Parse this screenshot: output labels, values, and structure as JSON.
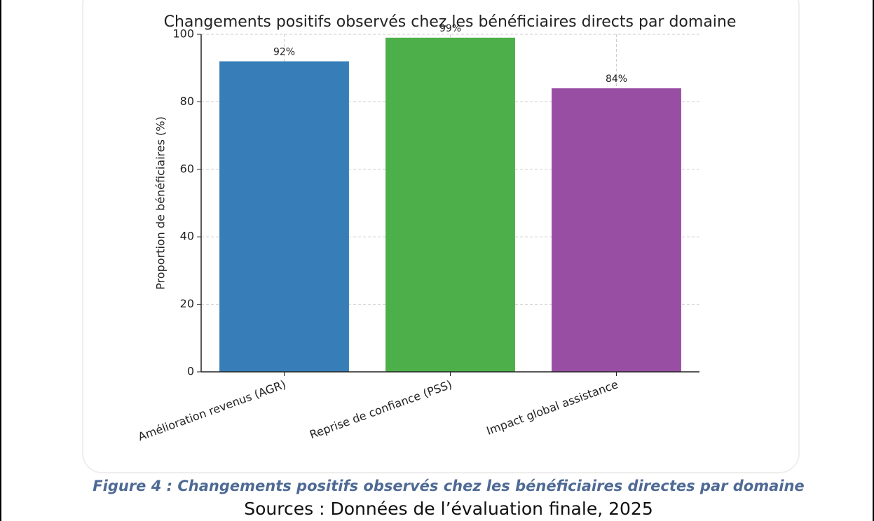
{
  "chart_data": {
    "type": "bar",
    "title": "Changements positifs observés chez les bénéficiaires directs par domaine",
    "ylabel": "Proportion de bénéficiaires (%)",
    "categories": [
      "Amélioration revenus (AGR)",
      "Reprise de confiance (PSS)",
      "Impact global assistance"
    ],
    "values": [
      92,
      99,
      84
    ],
    "value_labels": [
      "92%",
      "99%",
      "84%"
    ],
    "colors": [
      "#377eb8",
      "#4daf4a",
      "#984ea3"
    ],
    "ylim": [
      0,
      100
    ],
    "yticks": [
      0,
      20,
      40,
      60,
      80,
      100
    ],
    "grid": true
  },
  "caption": {
    "figure": "Figure 4  : Changements positifs observés chez les bénéficiaires directes par domaine",
    "source": "Sources : Données de l’évaluation finale, 2025"
  }
}
